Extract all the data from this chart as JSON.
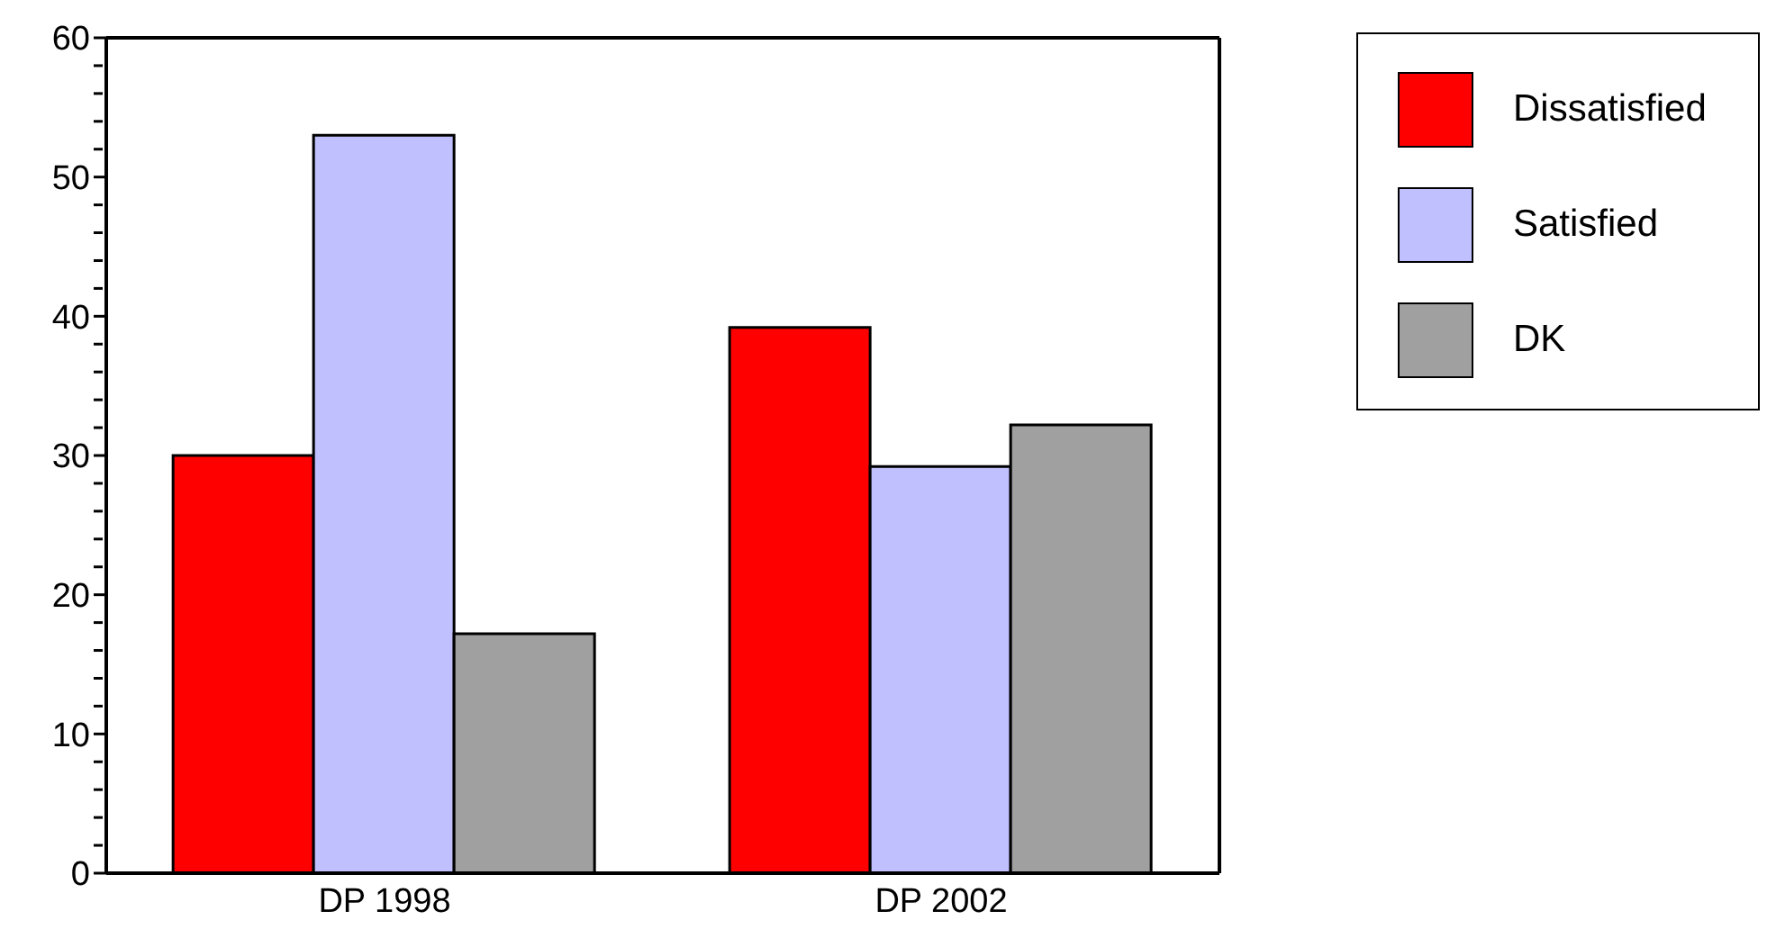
{
  "chart_data": {
    "type": "bar",
    "categories": [
      "DP 1998",
      "DP 2002"
    ],
    "series": [
      {
        "name": "Dissatisfied",
        "color": "#ff0000",
        "values": [
          30,
          39.2
        ]
      },
      {
        "name": "Satisfied",
        "color": "#c0c0ff",
        "values": [
          53,
          29.2
        ]
      },
      {
        "name": "DK",
        "color": "#a0a0a0",
        "values": [
          17.2,
          32.2
        ]
      }
    ],
    "ylim": [
      0,
      60
    ],
    "yticks": [
      0,
      {
        "value": 2,
        "label": null
      },
      {
        "value": 4,
        "label": null
      },
      {
        "value": 6,
        "label": null
      },
      {
        "value": 8,
        "label": null
      },
      10,
      {
        "value": 12,
        "label": null
      },
      {
        "value": 14,
        "label": null
      },
      {
        "value": 16,
        "label": null
      },
      {
        "value": 18,
        "label": null
      },
      20,
      {
        "value": 22,
        "label": null
      },
      {
        "value": 24,
        "label": null
      },
      {
        "value": 26,
        "label": null
      },
      {
        "value": 28,
        "label": null
      },
      30,
      {
        "value": 32,
        "label": null
      },
      {
        "value": 34,
        "label": null
      },
      {
        "value": 36,
        "label": null
      },
      {
        "value": 38,
        "label": null
      },
      40,
      {
        "value": 42,
        "label": null
      },
      {
        "value": 44,
        "label": null
      },
      {
        "value": 46,
        "label": null
      },
      {
        "value": 48,
        "label": null
      },
      50,
      {
        "value": 52,
        "label": null
      },
      {
        "value": 54,
        "label": null
      },
      {
        "value": 56,
        "label": null
      },
      {
        "value": 58,
        "label": null
      },
      60
    ],
    "grid": false,
    "legend": "top right"
  }
}
